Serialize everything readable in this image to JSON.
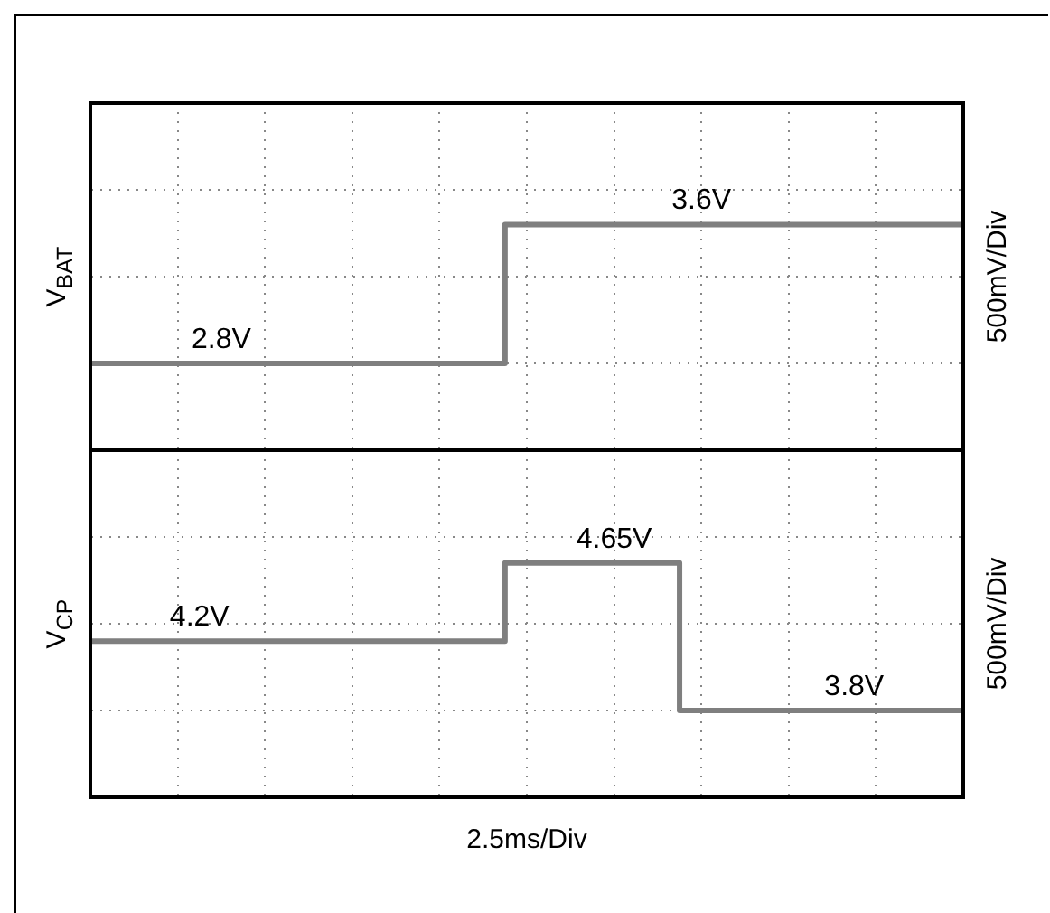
{
  "chart_data": [
    {
      "type": "step",
      "ylabel": "V$_{BAT}$",
      "categories": [
        null,
        null,
        null,
        null,
        null,
        null,
        null,
        null,
        null,
        null,
        null,
        null,
        null,
        null,
        null,
        null,
        null,
        null,
        null,
        null,
        null,
        null,
        null,
        null,
        null,
        null,
        null,
        null,
        null,
        null,
        null,
        null,
        null,
        null,
        null,
        null,
        null,
        null,
        null,
        null,
        null
      ],
      "series": [
        {
          "color": "#7f7f7f",
          "values": [
            2.8,
            2.8,
            2.8,
            2.8,
            2.8,
            2.8,
            2.8,
            2.8,
            2.8,
            2.8,
            2.8,
            2.8,
            2.8,
            2.8,
            2.8,
            2.8,
            2.8,
            2.8,
            2.8,
            2.8,
            3.6,
            3.6,
            3.6,
            3.6,
            3.6,
            3.6,
            3.6,
            3.6,
            3.6,
            3.6,
            3.6,
            3.6,
            3.6,
            3.6,
            3.6,
            3.6,
            3.6,
            3.6,
            3.6,
            3.6,
            3.6
          ],
          "value_labels": [
            null,
            null,
            null,
            null,
            null,
            null,
            "2.8V",
            null,
            null,
            null,
            null,
            null,
            null,
            null,
            null,
            null,
            null,
            null,
            null,
            null,
            null,
            null,
            null,
            null,
            null,
            null,
            null,
            null,
            "3.6V",
            null,
            null,
            null,
            null,
            null,
            null,
            null,
            null,
            null,
            null,
            null,
            null
          ]
        }
      ],
      "ylim": [
        2.3,
        4.3
      ],
      "yticks": [
        {
          "value": 2.3,
          "label": null
        },
        {
          "value": 2.8,
          "label": null
        },
        {
          "value": 3.3,
          "label": null
        },
        {
          "value": 3.8,
          "label": null
        },
        {
          "value": 4.3,
          "label": null
        }
      ],
      "grid": true,
      "tick_labels": false,
      "annotations": [
        "500mV/Div"
      ]
    },
    {
      "type": "step",
      "ylabel": "V$_{CP}$",
      "xlabel": "2.5ms/Div",
      "categories": [
        null,
        null,
        null,
        null,
        null,
        null,
        null,
        null,
        null,
        null,
        null,
        null,
        null,
        null,
        null,
        null,
        null,
        null,
        null,
        null,
        null,
        null,
        null,
        null,
        null,
        null,
        null,
        null,
        null,
        null,
        null,
        null,
        null,
        null,
        null,
        null,
        null,
        null,
        null,
        null,
        null
      ],
      "series": [
        {
          "color": "#7f7f7f",
          "values": [
            4.2,
            4.2,
            4.2,
            4.2,
            4.2,
            4.2,
            4.2,
            4.2,
            4.2,
            4.2,
            4.2,
            4.2,
            4.2,
            4.2,
            4.2,
            4.2,
            4.2,
            4.2,
            4.2,
            4.2,
            4.65,
            4.65,
            4.65,
            4.65,
            4.65,
            4.65,
            4.65,
            4.65,
            3.8,
            3.8,
            3.8,
            3.8,
            3.8,
            3.8,
            3.8,
            3.8,
            3.8,
            3.8,
            3.8,
            3.8,
            3.8
          ],
          "value_labels": [
            null,
            null,
            null,
            null,
            null,
            "4.2V",
            null,
            null,
            null,
            null,
            null,
            null,
            null,
            null,
            null,
            null,
            null,
            null,
            null,
            null,
            null,
            null,
            null,
            null,
            "4.65V",
            null,
            null,
            null,
            null,
            null,
            null,
            null,
            null,
            null,
            null,
            "3.8V",
            null,
            null,
            null,
            null,
            null
          ]
        }
      ],
      "ylim": [
        3.3,
        5.3
      ],
      "yticks": [
        {
          "value": 3.3,
          "label": null
        },
        {
          "value": 3.8,
          "label": null
        },
        {
          "value": 4.3,
          "label": null
        },
        {
          "value": 4.8,
          "label": null
        },
        {
          "value": 5.3,
          "label": null
        }
      ],
      "grid": true,
      "tick_labels": false,
      "annotations": [
        "500mV/Div"
      ]
    }
  ]
}
